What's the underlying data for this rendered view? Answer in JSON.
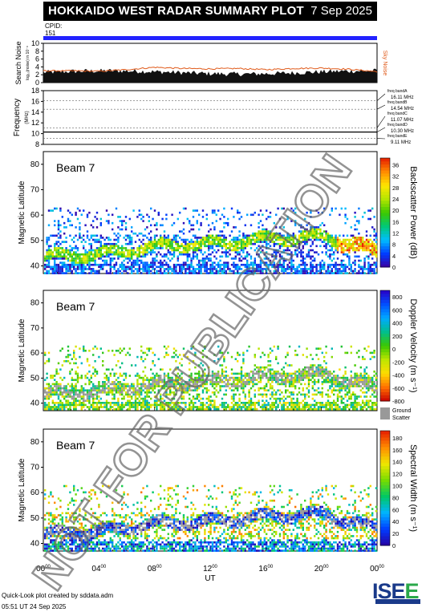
{
  "header": {
    "title": "HOKKAIDO WEST RADAR SUMMARY PLOT",
    "date": "7 Sep 2025",
    "cpid_label": "CPID:",
    "cpid_value": "151"
  },
  "noise_panel": {
    "ylabel_main": "Search Noise",
    "ylabel_sub": "log₁₀(noise) in 10⁻⁸",
    "right_label": "Sky Noise",
    "yticks": [
      "0",
      "2",
      "4",
      "6",
      "8",
      "10"
    ]
  },
  "freq_panel": {
    "ylabel_main": "Frequency",
    "ylabel_sub": "(MHz)",
    "yticks": [
      "8",
      "10",
      "12",
      "14",
      "16",
      "18"
    ],
    "bands": [
      {
        "name": "freq bandA",
        "value": "16.11 MHz"
      },
      {
        "name": "freq bandB",
        "value": "14.54 MHz"
      },
      {
        "name": "freq bandC",
        "value": "11.07 MHz"
      },
      {
        "name": "freq bandD",
        "value": "10.30 MHz"
      },
      {
        "name": "freq bandE",
        "value": "9.11 MHz"
      }
    ]
  },
  "panels": [
    {
      "beam_label": "Beam  7",
      "ylabel": "Magnetic Latitude",
      "yticks": [
        "40",
        "50",
        "60",
        "70",
        "80"
      ],
      "cbar_label": "Backscatter Power (dB)",
      "cbar_ticks": [
        "0",
        "4",
        "8",
        "12",
        "16",
        "20",
        "24",
        "28",
        "32",
        "36"
      ]
    },
    {
      "beam_label": "Beam  7",
      "ylabel": "Magnetic Latitude",
      "yticks": [
        "40",
        "50",
        "60",
        "70",
        "80"
      ],
      "cbar_label": "Doppler Velocity (m s⁻¹)",
      "cbar_ticks": [
        "-800",
        "-600",
        "-400",
        "-200",
        "0",
        "200",
        "400",
        "600",
        "800"
      ],
      "ground_label_1": "Ground",
      "ground_label_2": "Scatter"
    },
    {
      "beam_label": "Beam  7",
      "ylabel": "Magnetic Latitude",
      "yticks": [
        "40",
        "50",
        "60",
        "70",
        "80"
      ],
      "cbar_label": "Spectral Width (m s⁻¹)",
      "cbar_ticks": [
        "0",
        "20",
        "40",
        "60",
        "80",
        "100",
        "120",
        "140",
        "160",
        "180"
      ]
    }
  ],
  "x_axis": {
    "label": "UT",
    "ticks": [
      "00",
      "04",
      "08",
      "12",
      "16",
      "20",
      "00"
    ],
    "tick_suffix": "00"
  },
  "footer": {
    "line1": "Quick-Look plot created by sddata.adm",
    "line2": "05:51 UT 24 Sep 2025"
  },
  "watermark": "NOT FOR PUBLICATION",
  "logo": "ISEE",
  "chart_data": [
    {
      "type": "line",
      "title": "Search Noise",
      "ylim": [
        0,
        10
      ],
      "x_hours": [
        0,
        2,
        4,
        6,
        8,
        10,
        12,
        14,
        16,
        18,
        20,
        22,
        24
      ],
      "series": [
        {
          "name": "Sky Noise",
          "values": [
            3.0,
            3.0,
            2.9,
            3.3,
            3.9,
            3.6,
            3.5,
            3.6,
            3.3,
            3.6,
            3.7,
            3.4,
            2.8
          ]
        }
      ]
    },
    {
      "type": "line",
      "title": "Frequency",
      "ylim": [
        8,
        18
      ],
      "unit": "MHz",
      "reference_bands": [
        16.11,
        14.54,
        11.07,
        10.3,
        9.11
      ],
      "series": [
        {
          "name": "operating frequency",
          "values": [
            10.3
          ]
        }
      ]
    },
    {
      "type": "heatmap",
      "parameter": "Backscatter Power",
      "unit": "dB",
      "range": [
        0,
        36
      ],
      "xlim": [
        0,
        24
      ],
      "ylim": [
        37,
        85
      ],
      "echo_band_center": {
        "x_hours": [
          0,
          4,
          8,
          12,
          16,
          20,
          24
        ],
        "mlat": [
          44,
          45,
          48,
          49,
          51,
          52,
          46
        ]
      }
    },
    {
      "type": "heatmap",
      "parameter": "Doppler Velocity",
      "unit": "m s-1",
      "range": [
        -800,
        800
      ],
      "xlim": [
        0,
        24
      ],
      "ylim": [
        37,
        85
      ],
      "echo_band_center": {
        "x_hours": [
          0,
          4,
          8,
          12,
          16,
          20,
          24
        ],
        "mlat": [
          44,
          45,
          48,
          49,
          51,
          52,
          46
        ]
      }
    },
    {
      "type": "heatmap",
      "parameter": "Spectral Width",
      "unit": "m s-1",
      "range": [
        0,
        180
      ],
      "xlim": [
        0,
        24
      ],
      "ylim": [
        37,
        85
      ],
      "echo_band_center": {
        "x_hours": [
          0,
          4,
          8,
          12,
          16,
          20,
          24
        ],
        "mlat": [
          44,
          45,
          48,
          49,
          51,
          52,
          46
        ]
      }
    }
  ],
  "colors": {
    "cpid_bar": "#2222ff",
    "sky_noise": "#e05a1a",
    "ground_scatter": "#999999"
  }
}
